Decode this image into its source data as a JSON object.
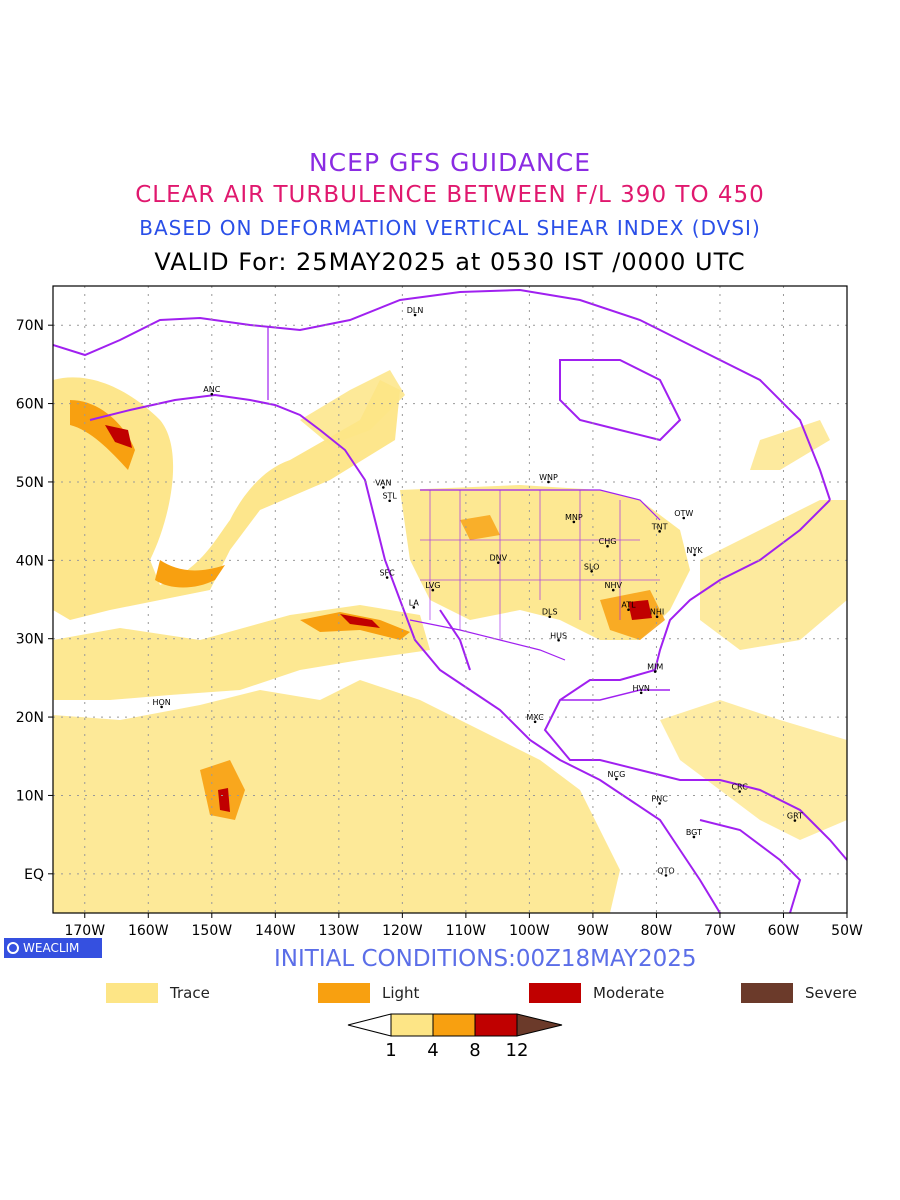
{
  "titles": {
    "line1": "NCEP GFS GUIDANCE",
    "line2": "CLEAR AIR TURBULENCE BETWEEN F/L 390 TO 450",
    "line3": "BASED ON DEFORMATION VERTICAL SHEAR INDEX (DVSI)",
    "line4": "VALID For: 25MAY2025 at 0530 IST /0000 UTC"
  },
  "colors": {
    "title1": "#8a2be2",
    "title2": "#e0186e",
    "title3": "#2a4fe8",
    "title4": "#000000",
    "trace": "#fde586",
    "light": "#f8a010",
    "moderate": "#c00000",
    "severe": "#6b3a2a",
    "coastline": "#a020f0",
    "brand_bg": "#3550e0",
    "init_text": "#5b6ee8"
  },
  "map": {
    "lat_labels": [
      "70N",
      "60N",
      "50N",
      "40N",
      "30N",
      "20N",
      "10N",
      "EQ"
    ],
    "lon_labels": [
      "170W",
      "160W",
      "150W",
      "140W",
      "130W",
      "120W",
      "110W",
      "100W",
      "90W",
      "80W",
      "70W",
      "60W",
      "50W"
    ],
    "stations": [
      {
        "name": "ANC",
        "lon": -150,
        "lat": 61.2
      },
      {
        "name": "DLN",
        "lon": -118,
        "lat": 71.3
      },
      {
        "name": "VAN",
        "lon": -123,
        "lat": 49.3
      },
      {
        "name": "STL",
        "lon": -122,
        "lat": 47.6
      },
      {
        "name": "WNP",
        "lon": -97,
        "lat": 50.0
      },
      {
        "name": "MNP",
        "lon": -93,
        "lat": 44.9
      },
      {
        "name": "TNT",
        "lon": -79.5,
        "lat": 43.7
      },
      {
        "name": "OTW",
        "lon": -75.7,
        "lat": 45.4
      },
      {
        "name": "CHG",
        "lon": -87.7,
        "lat": 41.8
      },
      {
        "name": "NYK",
        "lon": -74,
        "lat": 40.7
      },
      {
        "name": "SFC",
        "lon": -122.4,
        "lat": 37.8
      },
      {
        "name": "DNV",
        "lon": -104.9,
        "lat": 39.7
      },
      {
        "name": "SLO",
        "lon": -90.2,
        "lat": 38.6
      },
      {
        "name": "LVG",
        "lon": -115.2,
        "lat": 36.2
      },
      {
        "name": "NHV",
        "lon": -86.8,
        "lat": 36.2
      },
      {
        "name": "LA",
        "lon": -118.2,
        "lat": 34.0
      },
      {
        "name": "ATL",
        "lon": -84.4,
        "lat": 33.7
      },
      {
        "name": "DLS",
        "lon": -96.8,
        "lat": 32.8
      },
      {
        "name": "NHI",
        "lon": -79.9,
        "lat": 32.8
      },
      {
        "name": "HUS",
        "lon": -95.4,
        "lat": 29.8
      },
      {
        "name": "MIM",
        "lon": -80.2,
        "lat": 25.8
      },
      {
        "name": "HVN",
        "lon": -82.4,
        "lat": 23.1
      },
      {
        "name": "HON",
        "lon": -157.9,
        "lat": 21.3
      },
      {
        "name": "MXC",
        "lon": -99.1,
        "lat": 19.4
      },
      {
        "name": "NCG",
        "lon": -86.3,
        "lat": 12.1
      },
      {
        "name": "CRC",
        "lon": -66.9,
        "lat": 10.5
      },
      {
        "name": "PNC",
        "lon": -79.5,
        "lat": 8.98
      },
      {
        "name": "GRT",
        "lon": -58.2,
        "lat": 6.8
      },
      {
        "name": "BGT",
        "lon": -74.1,
        "lat": 4.7
      },
      {
        "name": "QTO",
        "lon": -78.5,
        "lat": -0.2
      }
    ],
    "extent": {
      "lon_min": -175,
      "lon_max": -50,
      "lat_min": -5,
      "lat_max": 75
    }
  },
  "brand": "WEACLIM",
  "initial_conditions": "INITIAL CONDITIONS:00Z18MAY2025",
  "legend": [
    {
      "label": "Trace",
      "color": "#fde586"
    },
    {
      "label": "Light",
      "color": "#f8a010"
    },
    {
      "label": "Moderate",
      "color": "#c00000"
    },
    {
      "label": "Severe",
      "color": "#6b3a2a"
    }
  ],
  "colorbar": {
    "ticks": [
      "1",
      "4",
      "8",
      "12"
    ]
  }
}
